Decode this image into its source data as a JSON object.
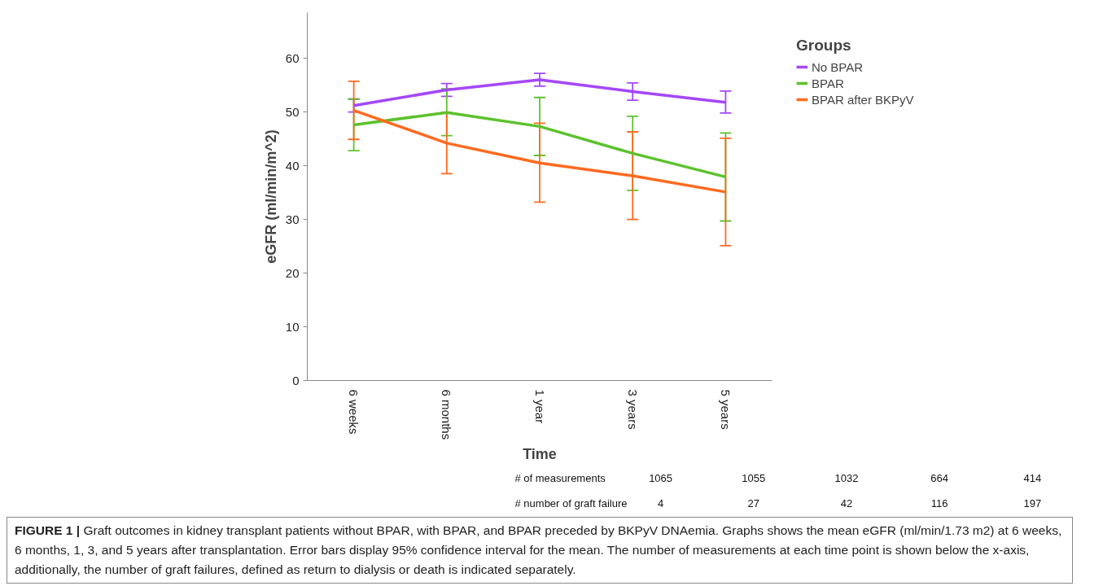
{
  "chart_data": {
    "type": "line",
    "title": "FIGURE 1 | Graft outcomes in kidney transplant patients without BPAR, with BPAR, and BPAR preceded by BKPyV DNAemia. Graphs shows the mean eGFR (ml/min/1.73 m2) at 6 weeks, 6 months, 1, 3, and 5 years after transplantation. Error bars display 95% confidence interval for the mean. The number of measurements at each time point is shown below the x-axis, additionally, the number of graft failures, defined as return to dialysis or death is indicated separately.",
    "xlabel": "Time",
    "ylabel": "eGFR (ml/min/m^2)",
    "legend_title": "Groups",
    "legend": "top right",
    "categories": [
      "6 weeks",
      "6 months",
      "1 year",
      "3 years",
      "5 years"
    ],
    "ylim": [
      0,
      68.5
    ],
    "yticks": [
      0,
      10,
      20,
      30,
      40,
      50,
      60
    ],
    "grid": false,
    "series": [
      {
        "name": "No BPAR",
        "color": "#a447f7",
        "values": [
          51.2,
          54.1,
          56.0,
          53.8,
          51.8
        ],
        "errors": [
          [
            50.0,
            52.4
          ],
          [
            52.9,
            55.3
          ],
          [
            54.8,
            57.2
          ],
          [
            52.2,
            55.4
          ],
          [
            49.8,
            53.9
          ]
        ]
      },
      {
        "name": "BPAR",
        "color": "#5cc22e",
        "values": [
          47.6,
          49.9,
          47.3,
          42.3,
          37.9
        ],
        "errors": [
          [
            42.8,
            52.4
          ],
          [
            45.6,
            54.3
          ],
          [
            41.9,
            52.7
          ],
          [
            35.4,
            49.2
          ],
          [
            29.7,
            46.1
          ]
        ]
      },
      {
        "name": "BPAR after BKPyV",
        "color": "#ff6a1f",
        "values": [
          50.3,
          44.2,
          40.5,
          38.1,
          35.1
        ],
        "errors": [
          [
            44.9,
            55.7
          ],
          [
            38.5,
            49.9
          ],
          [
            33.2,
            47.9
          ],
          [
            30.0,
            46.3
          ],
          [
            25.1,
            45.1
          ]
        ]
      }
    ],
    "annotations": [
      "# of measurements",
      "1065",
      "1055",
      "1032",
      "664",
      "414",
      "# number of graft failure",
      "4",
      "27",
      "42",
      "116",
      "197"
    ]
  }
}
